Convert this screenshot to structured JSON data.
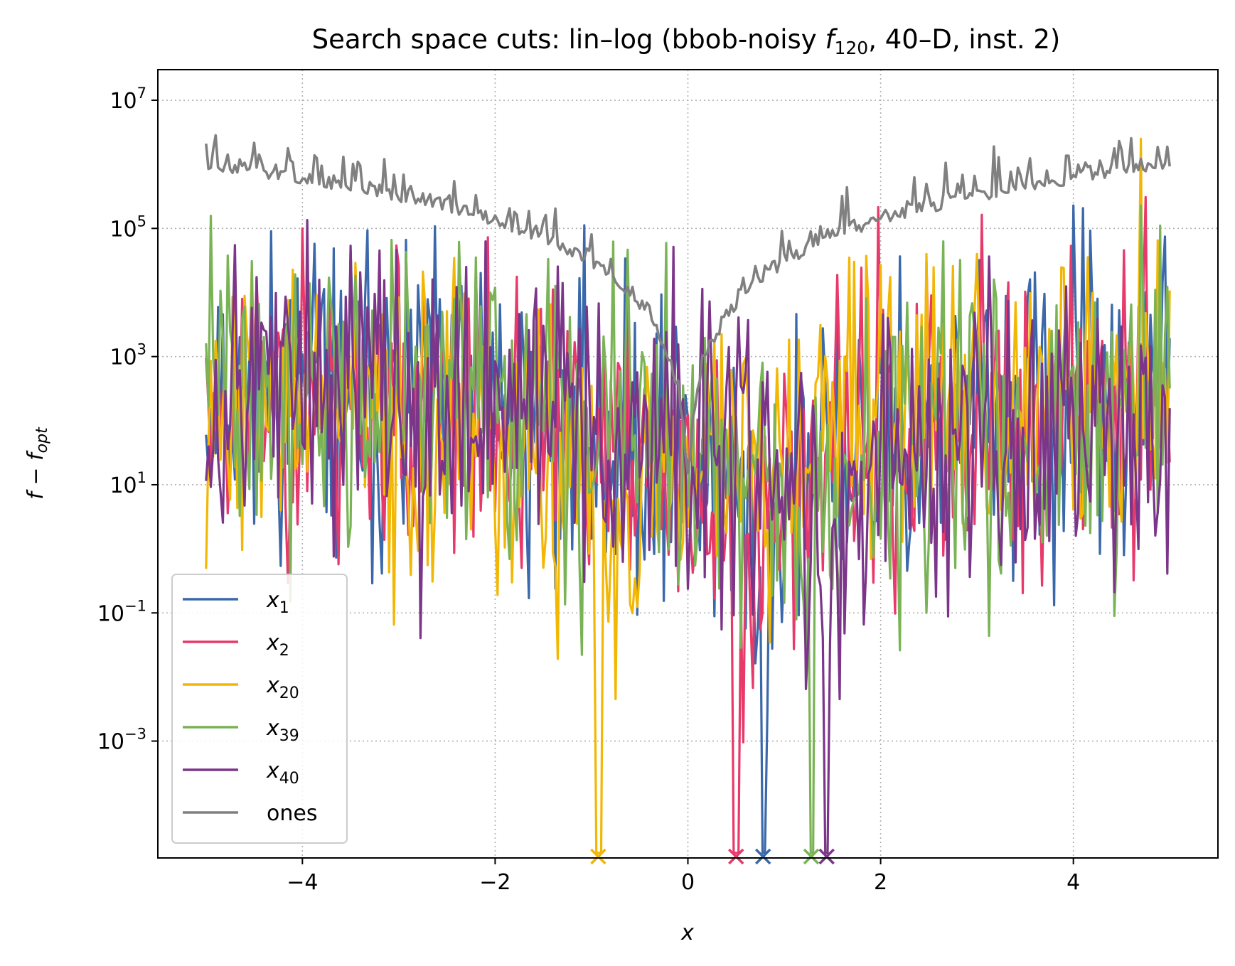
{
  "chart_data": {
    "type": "line",
    "title": "Search space cuts: lin–log (bbob-noisy f120, 40–D, inst. 2)",
    "title_parts": {
      "prefix": "Search space cuts: lin–log (bbob-noisy ",
      "func": "f",
      "func_sub": "120",
      "suffix": ", 40–D, inst. 2)"
    },
    "xlabel": "x",
    "ylabel": "f − f_opt",
    "ylabel_parts": {
      "main": "f − f",
      "sub": "opt"
    },
    "x_scale": "linear",
    "y_scale": "log",
    "xlim": [
      -5.5,
      5.5
    ],
    "ylim": [
      1.5e-05,
      30000000.0
    ],
    "x_ticks": [
      -4,
      -2,
      0,
      2,
      4
    ],
    "x_tick_labels": [
      "−4",
      "−2",
      "0",
      "2",
      "4"
    ],
    "y_ticks": [
      0.001,
      0.1,
      10.0,
      1000.0,
      100000.0,
      10000000.0
    ],
    "y_tick_labels": [
      {
        "base": "10",
        "exp": "−3"
      },
      {
        "base": "10",
        "exp": "−1"
      },
      {
        "base": "10",
        "exp": "1"
      },
      {
        "base": "10",
        "exp": "3"
      },
      {
        "base": "10",
        "exp": "5"
      },
      {
        "base": "10",
        "exp": "7"
      }
    ],
    "grid": true,
    "legend_position": "lower-left",
    "x_range": [
      -5,
      5
    ],
    "series": [
      {
        "name": "x_1",
        "label_main": "x",
        "label_sub": "1",
        "color": "#3a68aa",
        "optimum_x": 0.78
      },
      {
        "name": "x_2",
        "label_main": "x",
        "label_sub": "2",
        "color": "#e8396b",
        "optimum_x": 0.5
      },
      {
        "name": "x_20",
        "label_main": "x",
        "label_sub": "20",
        "color": "#f2b705",
        "optimum_x": -0.93
      },
      {
        "name": "x_39",
        "label_main": "x",
        "label_sub": "39",
        "color": "#7ab356",
        "optimum_x": 1.28
      },
      {
        "name": "x_40",
        "label_main": "x",
        "label_sub": "40",
        "color": "#7b3589",
        "optimum_x": 1.44
      },
      {
        "name": "ones",
        "label_main": "ones",
        "label_sub": "",
        "color": "#808080"
      }
    ]
  }
}
